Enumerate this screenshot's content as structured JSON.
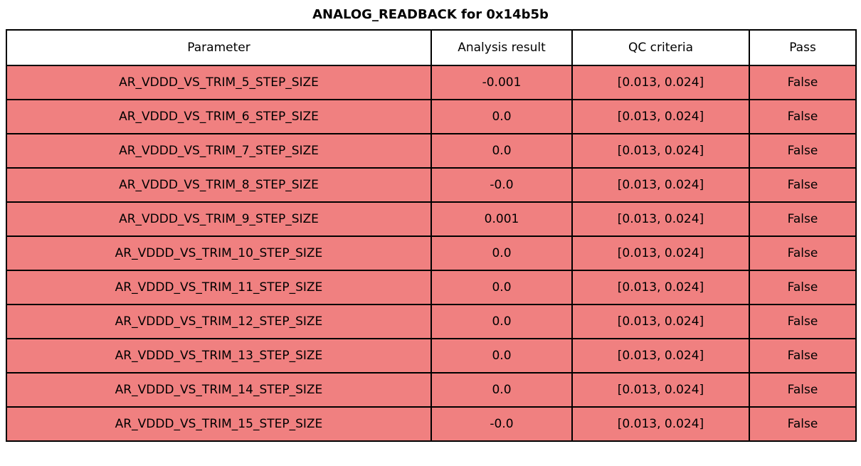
{
  "page_title": "ANALOG_READBACK for 0x14b5b",
  "colors": {
    "fail_row_bg": "#f08080",
    "header_bg": "#ffffff",
    "border": "#000000",
    "text": "#000000"
  },
  "chart_data": {
    "type": "table",
    "title": "ANALOG_READBACK for 0x14b5b",
    "columns": [
      "Parameter",
      "Analysis result",
      "QC criteria",
      "Pass"
    ],
    "rows": [
      [
        "AR_VDDD_VS_TRIM_5_STEP_SIZE",
        "-0.001",
        "[0.013, 0.024]",
        "False"
      ],
      [
        "AR_VDDD_VS_TRIM_6_STEP_SIZE",
        "0.0",
        "[0.013, 0.024]",
        "False"
      ],
      [
        "AR_VDDD_VS_TRIM_7_STEP_SIZE",
        "0.0",
        "[0.013, 0.024]",
        "False"
      ],
      [
        "AR_VDDD_VS_TRIM_8_STEP_SIZE",
        "-0.0",
        "[0.013, 0.024]",
        "False"
      ],
      [
        "AR_VDDD_VS_TRIM_9_STEP_SIZE",
        "0.001",
        "[0.013, 0.024]",
        "False"
      ],
      [
        "AR_VDDD_VS_TRIM_10_STEP_SIZE",
        "0.0",
        "[0.013, 0.024]",
        "False"
      ],
      [
        "AR_VDDD_VS_TRIM_11_STEP_SIZE",
        "0.0",
        "[0.013, 0.024]",
        "False"
      ],
      [
        "AR_VDDD_VS_TRIM_12_STEP_SIZE",
        "0.0",
        "[0.013, 0.024]",
        "False"
      ],
      [
        "AR_VDDD_VS_TRIM_13_STEP_SIZE",
        "0.0",
        "[0.013, 0.024]",
        "False"
      ],
      [
        "AR_VDDD_VS_TRIM_14_STEP_SIZE",
        "0.0",
        "[0.013, 0.024]",
        "False"
      ],
      [
        "AR_VDDD_VS_TRIM_15_STEP_SIZE",
        "-0.0",
        "[0.013, 0.024]",
        "False"
      ]
    ],
    "row_status": [
      "fail",
      "fail",
      "fail",
      "fail",
      "fail",
      "fail",
      "fail",
      "fail",
      "fail",
      "fail",
      "fail"
    ],
    "layout": {
      "grid": true,
      "header_row": true
    }
  }
}
